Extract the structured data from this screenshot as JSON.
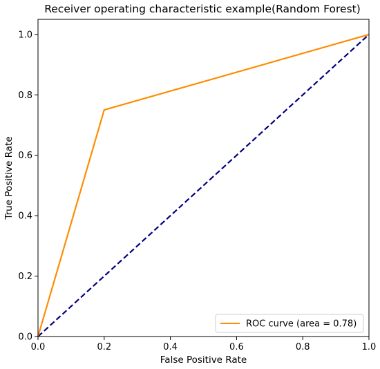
{
  "chart_data": {
    "type": "line",
    "title": "Receiver operating characteristic example(Random Forest)",
    "xlabel": "False Positive Rate",
    "ylabel": "True Positive Rate",
    "xlim": [
      0.0,
      1.0
    ],
    "ylim": [
      0.0,
      1.05
    ],
    "xticks": [
      "0.0",
      "0.2",
      "0.4",
      "0.6",
      "0.8",
      "1.0"
    ],
    "yticks": [
      "0.0",
      "0.2",
      "0.4",
      "0.6",
      "0.8",
      "1.0"
    ],
    "grid": false,
    "legend_position": "lower-right",
    "series": [
      {
        "name": "ROC curve (area = 0.78)",
        "color": "#ff8c00",
        "style": "solid",
        "x": [
          0.0,
          0.2,
          1.0
        ],
        "y": [
          0.0,
          0.75,
          1.0
        ]
      },
      {
        "color": "#000080",
        "style": "dashed",
        "x": [
          0.0,
          1.0
        ],
        "y": [
          0.0,
          1.0
        ]
      }
    ]
  }
}
